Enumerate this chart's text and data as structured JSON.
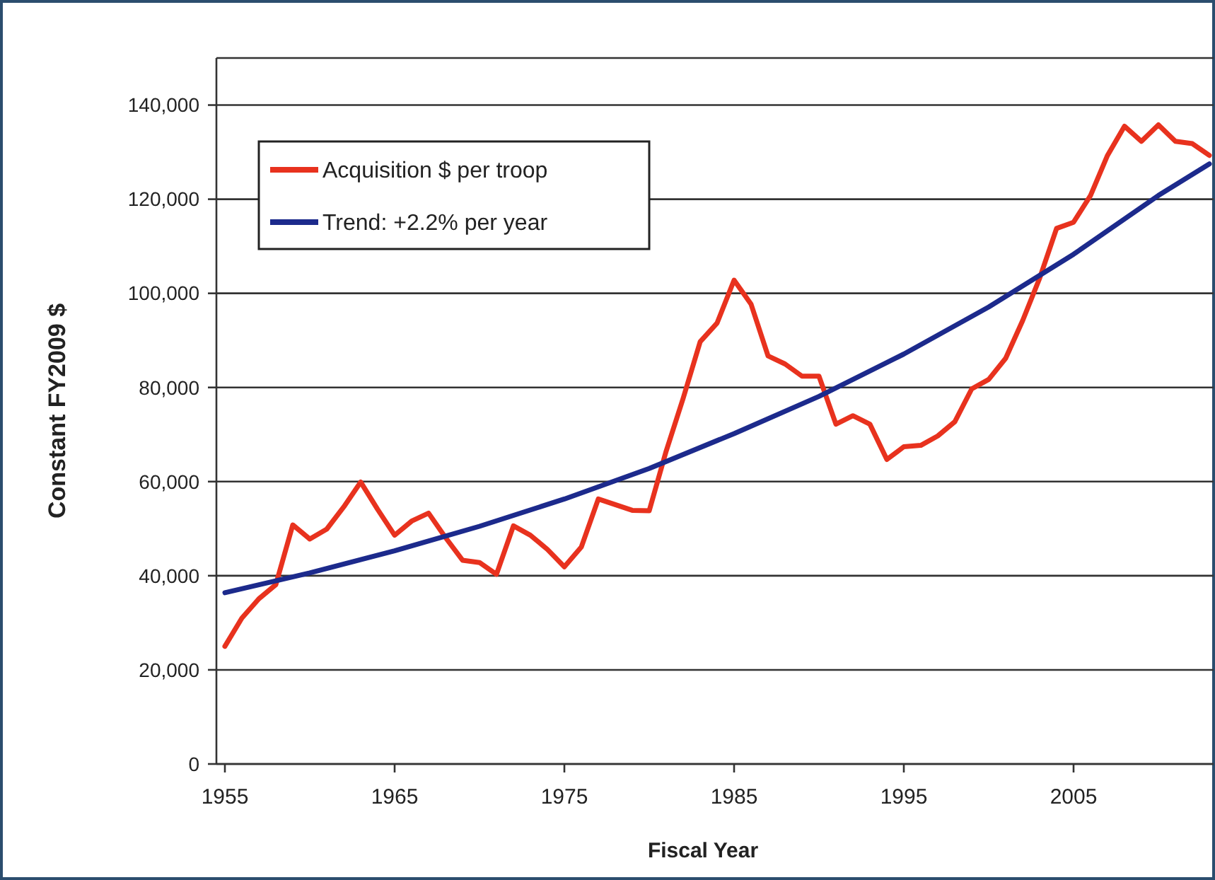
{
  "chart_data": {
    "type": "line",
    "xlabel": "Fiscal Year",
    "ylabel": "Constant FY2009 $",
    "xlim": [
      1954.5,
      2013.5
    ],
    "xticks": [
      1955,
      1965,
      1975,
      1985,
      1995,
      2005
    ],
    "ylim": [
      0,
      150000
    ],
    "yticks": [
      {
        "value": 0,
        "label": "0"
      },
      {
        "value": 20000,
        "label": "20,000"
      },
      {
        "value": 40000,
        "label": "40,000"
      },
      {
        "value": 60000,
        "label": "60,000"
      },
      {
        "value": 80000,
        "label": "80,000"
      },
      {
        "value": 100000,
        "label": "100,000"
      },
      {
        "value": 120000,
        "label": "120,000"
      },
      {
        "value": 140000,
        "label": "140,000"
      }
    ],
    "grid": "y",
    "legend": "top left",
    "marker": "none",
    "line_style": "solid",
    "series": [
      {
        "name": "Acquisition $ per troop",
        "color": "#e8321e",
        "x": [
          1955,
          1956,
          1957,
          1958,
          1959,
          1960,
          1961,
          1962,
          1963,
          1964,
          1965,
          1966,
          1967,
          1968,
          1969,
          1970,
          1971,
          1972,
          1973,
          1974,
          1975,
          1976,
          1977,
          1978,
          1979,
          1980,
          1981,
          1982,
          1983,
          1984,
          1985,
          1986,
          1987,
          1988,
          1989,
          1990,
          1991,
          1992,
          1993,
          1994,
          1995,
          1996,
          1997,
          1998,
          1999,
          2000,
          2001,
          2002,
          2003,
          2004,
          2005,
          2006,
          2007,
          2008,
          2009,
          2010,
          2011,
          2012,
          2013
        ],
        "values": [
          25000,
          31000,
          35100,
          38100,
          50800,
          47800,
          49900,
          54600,
          59900,
          54100,
          48600,
          51600,
          53300,
          48100,
          43300,
          42800,
          40300,
          50600,
          48600,
          45600,
          41900,
          46100,
          56300,
          55100,
          53900,
          53800,
          66500,
          77700,
          89700,
          93700,
          102800,
          97700,
          86700,
          85000,
          82400,
          82400,
          72200,
          74000,
          72200,
          64700,
          67400,
          67700,
          69700,
          72700,
          79700,
          81700,
          86200,
          94200,
          103200,
          113800,
          115100,
          120800,
          129300,
          135500,
          132300,
          135800,
          132300,
          131800,
          129300
        ]
      },
      {
        "name": "Trend: +2.2% per year",
        "color": "#1c2a8c",
        "x": [
          1955,
          1960,
          1965,
          1970,
          1975,
          1980,
          1985,
          1990,
          1995,
          2000,
          2005,
          2010,
          2013
        ],
        "values": [
          36400,
          40600,
          45300,
          50500,
          56300,
          62800,
          70200,
          78100,
          87100,
          97100,
          108300,
          120800,
          127500
        ]
      }
    ]
  }
}
